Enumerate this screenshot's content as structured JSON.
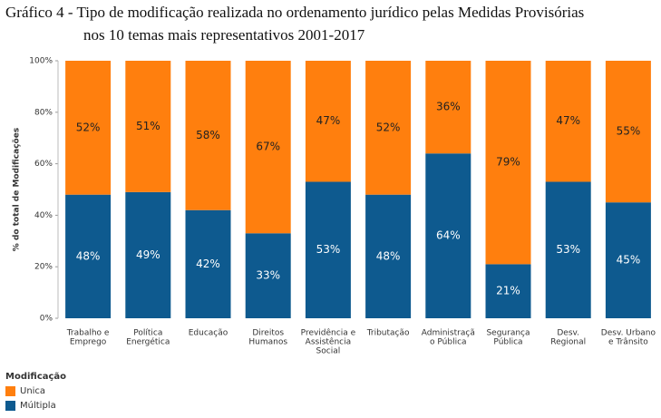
{
  "chart_data": {
    "type": "stacked_bar",
    "title": [
      "Gráfico 4 - Tipo de modificação realizada no ordenamento jurídico pelas Medidas Provisórias",
      "nos 10 temas mais representativos 2001-2017"
    ],
    "y_label": "% do total de Modificações",
    "categories": [
      [
        "Trabalho e",
        "Emprego"
      ],
      [
        "Política",
        "Energética"
      ],
      [
        "Educação"
      ],
      [
        "Direitos",
        "Humanos"
      ],
      [
        "Previdência e",
        "Assistência",
        "Social"
      ],
      [
        "Tributação"
      ],
      [
        "Administraçã",
        "o Pública"
      ],
      [
        "Segurança",
        "Pública"
      ],
      [
        "Desv.",
        "Regional"
      ],
      [
        "Desv. Urbano",
        "e Trânsito"
      ]
    ],
    "series": [
      {
        "name": "Múltipla",
        "color": "#0e5a8f",
        "values": [
          48,
          49,
          42,
          33,
          53,
          48,
          64,
          21,
          53,
          45
        ],
        "value_labels": [
          "48%",
          "49%",
          "42%",
          "33%",
          "53%",
          "48%",
          "64%",
          "21%",
          "53%",
          "45%"
        ]
      },
      {
        "name": "Unica",
        "color": "#ff7f0e",
        "values": [
          52,
          51,
          58,
          67,
          47,
          52,
          36,
          79,
          47,
          55
        ],
        "value_labels": [
          "52%",
          "51%",
          "58%",
          "67%",
          "47%",
          "52%",
          "36%",
          "79%",
          "47%",
          "55%"
        ]
      }
    ],
    "legend_title": "Modificação",
    "ylim": [
      0,
      100
    ],
    "yticks": [
      {
        "value": 0,
        "label": "0%"
      },
      {
        "value": 20,
        "label": "20%"
      },
      {
        "value": 40,
        "label": "40%"
      },
      {
        "value": 60,
        "label": "60%"
      },
      {
        "value": 80,
        "label": "80%"
      },
      {
        "value": 100,
        "label": "100%"
      }
    ],
    "grid": false
  }
}
